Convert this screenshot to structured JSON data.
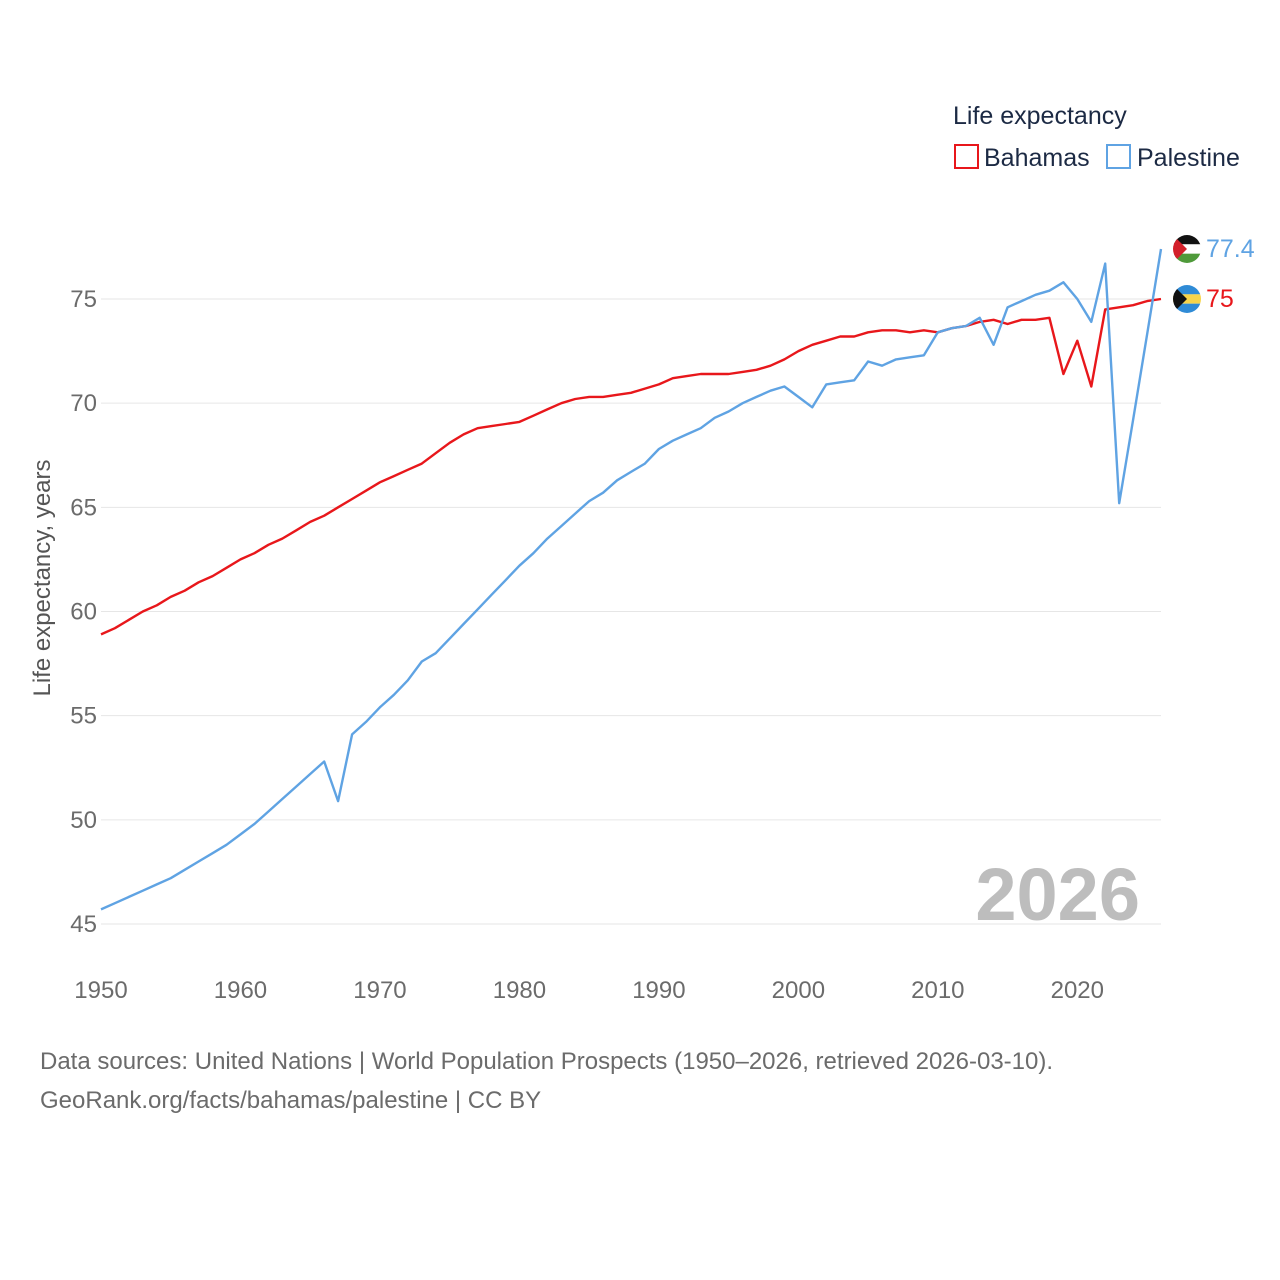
{
  "chart_data": {
    "type": "line",
    "title": "",
    "legend_title": "Life expectancy",
    "ylabel": "Life expectancy, years",
    "xlabel": "",
    "xlim": [
      1950,
      2026
    ],
    "ylim": [
      45,
      78.5
    ],
    "xticks": [
      1950,
      1960,
      1970,
      1980,
      1990,
      2000,
      2010,
      2020
    ],
    "yticks": [
      45,
      50,
      55,
      60,
      65,
      70,
      75
    ],
    "grid": true,
    "legend_position": "top-right",
    "current_year": "2026",
    "x": [
      1950,
      1951,
      1952,
      1953,
      1954,
      1955,
      1956,
      1957,
      1958,
      1959,
      1960,
      1961,
      1962,
      1963,
      1964,
      1965,
      1966,
      1967,
      1968,
      1969,
      1970,
      1971,
      1972,
      1973,
      1974,
      1975,
      1976,
      1977,
      1978,
      1979,
      1980,
      1981,
      1982,
      1983,
      1984,
      1985,
      1986,
      1987,
      1988,
      1989,
      1990,
      1991,
      1992,
      1993,
      1994,
      1995,
      1996,
      1997,
      1998,
      1999,
      2000,
      2001,
      2002,
      2003,
      2004,
      2005,
      2006,
      2007,
      2008,
      2009,
      2010,
      2011,
      2012,
      2013,
      2014,
      2015,
      2016,
      2017,
      2018,
      2019,
      2020,
      2021,
      2022,
      2023,
      2024,
      2025,
      2026
    ],
    "series": [
      {
        "name": "Bahamas",
        "color": "#e8171b",
        "end_label": "75",
        "flag": "bahamas",
        "values": [
          58.9,
          59.2,
          59.6,
          60.0,
          60.3,
          60.7,
          61.0,
          61.4,
          61.7,
          62.1,
          62.5,
          62.8,
          63.2,
          63.5,
          63.9,
          64.3,
          64.6,
          65.0,
          65.4,
          65.8,
          66.2,
          66.5,
          66.8,
          67.1,
          67.6,
          68.1,
          68.5,
          68.8,
          68.9,
          69.0,
          69.1,
          69.4,
          69.7,
          70.0,
          70.2,
          70.3,
          70.3,
          70.4,
          70.5,
          70.7,
          70.9,
          71.2,
          71.3,
          71.4,
          71.4,
          71.4,
          71.5,
          71.6,
          71.8,
          72.1,
          72.5,
          72.8,
          73.0,
          73.2,
          73.2,
          73.4,
          73.5,
          73.5,
          73.4,
          73.5,
          73.4,
          73.6,
          73.7,
          73.9,
          74.0,
          73.8,
          74.0,
          74.0,
          74.1,
          71.4,
          73.0,
          70.8,
          74.5,
          74.6,
          74.7,
          74.9,
          75.0
        ]
      },
      {
        "name": "Palestine",
        "color": "#5fa3e3",
        "end_label": "77.4",
        "flag": "palestine",
        "values": [
          45.7,
          46.0,
          46.3,
          46.6,
          46.9,
          47.2,
          47.6,
          48.0,
          48.4,
          48.8,
          49.3,
          49.8,
          50.4,
          51.0,
          51.6,
          52.2,
          52.8,
          50.9,
          54.1,
          54.7,
          55.4,
          56.0,
          56.7,
          57.6,
          58.0,
          58.7,
          59.4,
          60.1,
          60.8,
          61.5,
          62.2,
          62.8,
          63.5,
          64.1,
          64.7,
          65.3,
          65.7,
          66.3,
          66.7,
          67.1,
          67.8,
          68.2,
          68.5,
          68.8,
          69.3,
          69.6,
          70.0,
          70.3,
          70.6,
          70.8,
          70.3,
          69.8,
          70.9,
          71.0,
          71.1,
          72.0,
          71.8,
          72.1,
          72.2,
          72.3,
          73.4,
          73.6,
          73.7,
          74.1,
          72.8,
          74.6,
          74.9,
          75.2,
          75.4,
          75.8,
          75.0,
          73.9,
          76.7,
          65.2,
          69.2,
          73.3,
          77.4
        ]
      }
    ]
  },
  "footer": {
    "line1": "Data sources: United Nations | World Population Prospects (1950–2026, retrieved 2026-03-10).",
    "line2": "GeoRank.org/facts/bahamas/palestine | CC BY"
  }
}
